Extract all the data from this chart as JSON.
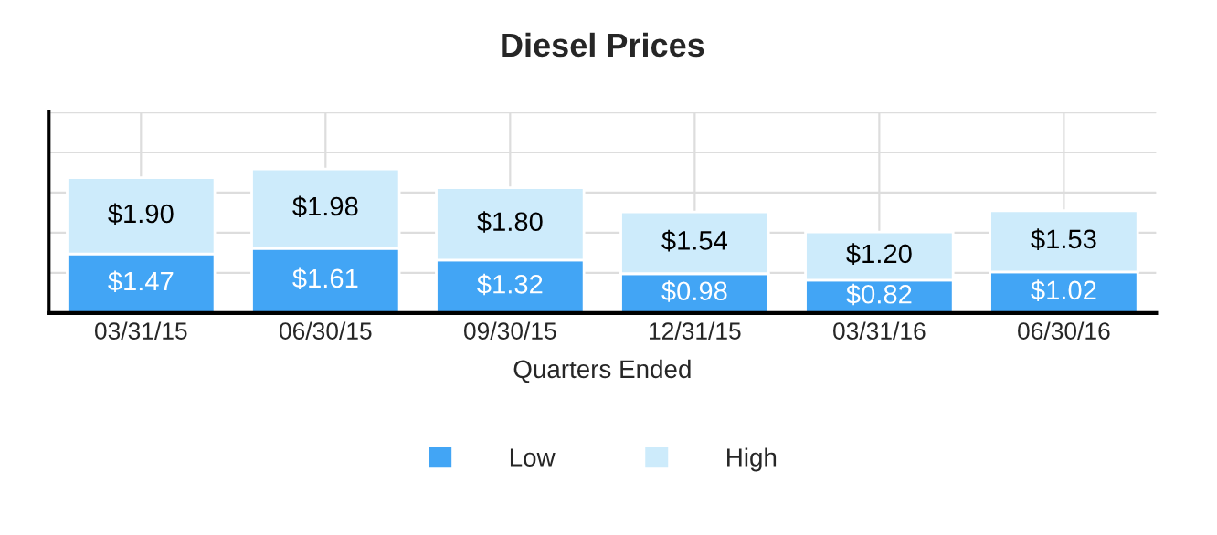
{
  "chart_data": {
    "type": "bar",
    "title": "Diesel Prices",
    "xlabel": "Quarters Ended",
    "categories": [
      "03/31/15",
      "06/30/15",
      "09/30/15",
      "12/31/15",
      "03/31/16",
      "06/30/16"
    ],
    "stacked": true,
    "data_labels": false,
    "series": [
      {
        "name": "Low",
        "color": "#42a5f5",
        "values": [
          1.47,
          1.61,
          1.32,
          0.98,
          0.82,
          1.02
        ],
        "value_labels": [
          "$1.47",
          "$1.61",
          "$1.32",
          "$0.98",
          "$0.82",
          "$1.02"
        ]
      },
      {
        "name": "High",
        "color": "#cdebfb",
        "values": [
          1.9,
          1.98,
          1.8,
          1.54,
          1.2,
          1.53
        ],
        "value_labels": [
          "$1.90",
          "$1.98",
          "$1.80",
          "$1.54",
          "$1.20",
          "$1.53"
        ]
      }
    ],
    "ylim": [
      0,
      5
    ],
    "yticks": [
      {
        "value": 0,
        "label": null
      },
      {
        "value": 1,
        "label": null
      },
      {
        "value": 2,
        "label": null
      },
      {
        "value": 3,
        "label": null
      },
      {
        "value": 4,
        "label": null
      },
      {
        "value": 5,
        "label": null
      }
    ],
    "tick_labels": "x",
    "grid": true,
    "legend": "bottom"
  }
}
